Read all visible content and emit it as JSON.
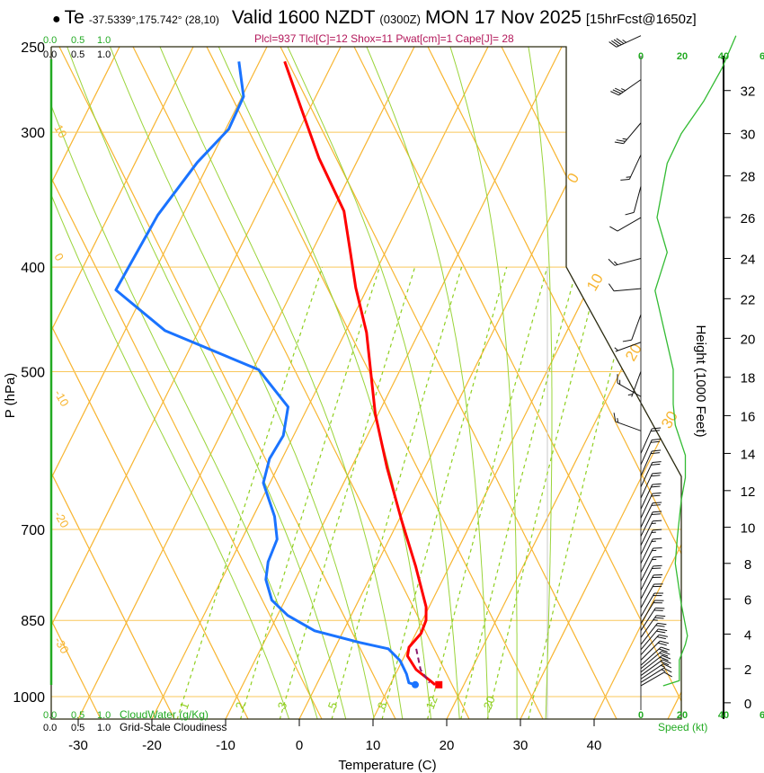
{
  "header": {
    "marker": "●",
    "station": "Te",
    "coords": "-37.5339°,175.742° (28,10)",
    "valid": "Valid 1600 NZDT",
    "utc": "(0300Z)",
    "date": "MON 17 Nov 2025",
    "forecast": "[15hrFcst@1650z]",
    "indices": "Plcl=937 Tlcl[C]=12 Shox=11 Pwat[cm]=1 Cape[J]= 28"
  },
  "chart_data": {
    "type": "line",
    "title": "Valid 1600 NZDT (0300Z) MON 17 Nov 2025",
    "xlabel": "Temperature (C)",
    "ylabel": "P (hPa)",
    "ylim": [
      1050,
      250
    ],
    "pressure_ticks": [
      250,
      300,
      400,
      500,
      700,
      850,
      1000
    ],
    "temp_ticks": [
      -30,
      -20,
      -10,
      0,
      10,
      20,
      30,
      40
    ],
    "isotherm_labels": [
      "0",
      "10",
      "20",
      "30"
    ],
    "adiabat_labels": [
      "10",
      "0",
      "-10",
      "-20",
      "-30"
    ],
    "mixing_ratio_labels": [
      "1",
      "2",
      "3",
      "5",
      "8",
      "12",
      "20"
    ],
    "mixing_ratio_values": [
      1,
      2,
      3,
      5,
      8,
      12,
      16,
      20,
      28
    ],
    "moist_adiabat_values": [
      -4,
      0,
      4,
      8,
      12,
      16,
      20,
      24,
      28,
      32
    ],
    "cloud_ticks": [
      "0.0",
      "0.5",
      "1.0"
    ],
    "cloudwater_label": "CloudWater (g/Kg)",
    "cloudiness_label": "Grid-Scale Cloudiness",
    "series": [
      {
        "name": "Temperature",
        "color": "#ff0000",
        "points": [
          [
            258,
            -46.6
          ],
          [
            285,
            -41.2
          ],
          [
            317,
            -35.4
          ],
          [
            355,
            -28.4
          ],
          [
            387,
            -24.8
          ],
          [
            418,
            -21.6
          ],
          [
            460,
            -17.1
          ],
          [
            547,
            -10.4
          ],
          [
            613,
            -5.2
          ],
          [
            688,
            0.5
          ],
          [
            757,
            5.4
          ],
          [
            826,
            9.6
          ],
          [
            850,
            10.5
          ],
          [
            874,
            10.7
          ],
          [
            900,
            10.0
          ],
          [
            917,
            10.4
          ],
          [
            944,
            12.5
          ],
          [
            966,
            15.1
          ],
          [
            975,
            16.1
          ]
        ]
      },
      {
        "name": "Dewpoint",
        "color": "#1a73ff",
        "points": [
          [
            258,
            -52.8
          ],
          [
            278,
            -49.8
          ],
          [
            298,
            -49.6
          ],
          [
            320,
            -51.6
          ],
          [
            358,
            -53.4
          ],
          [
            420,
            -54.0
          ],
          [
            458,
            -44.6
          ],
          [
            498,
            -29.2
          ],
          [
            539,
            -22.7
          ],
          [
            573,
            -21.4
          ],
          [
            602,
            -21.7
          ],
          [
            634,
            -20.9
          ],
          [
            681,
            -17.1
          ],
          [
            715,
            -15.2
          ],
          [
            750,
            -14.9
          ],
          [
            779,
            -14.0
          ],
          [
            814,
            -11.8
          ],
          [
            841,
            -8.6
          ],
          [
            869,
            -3.9
          ],
          [
            891,
            3.0
          ],
          [
            903,
            7.3
          ],
          [
            926,
            9.7
          ],
          [
            953,
            11.5
          ],
          [
            971,
            12.4
          ],
          [
            975,
            13.4
          ]
        ]
      },
      {
        "name": "Parcel",
        "color": "#8b1a6b",
        "points": [
          [
            903,
            11.1
          ],
          [
            944,
            13.1
          ],
          [
            971,
            15.2
          ]
        ]
      }
    ],
    "surface_markers": [
      {
        "name": "surface-temperature",
        "p": 975,
        "t": 16.6,
        "color": "#ff0000"
      },
      {
        "name": "surface-dewpoint",
        "p": 975,
        "t": 13.4,
        "color": "#1a73ff"
      }
    ],
    "wind": {
      "speed_ticks": [
        "0",
        "20",
        "40",
        "6"
      ],
      "speed_label": "Speed (kt)",
      "height_label": "Height (1000 Feet)",
      "height_ticks": [
        0,
        2,
        4,
        6,
        8,
        10,
        12,
        14,
        16,
        18,
        20,
        22,
        24,
        26,
        28,
        30,
        32
      ],
      "speed_profile": [
        [
          1.0,
          11
        ],
        [
          1.3,
          19
        ],
        [
          2.5,
          19
        ],
        [
          3.4,
          22
        ],
        [
          3.9,
          23
        ],
        [
          5.7,
          20
        ],
        [
          8.0,
          17
        ],
        [
          9.4,
          18
        ],
        [
          11.5,
          20
        ],
        [
          12.7,
          22
        ],
        [
          13.9,
          22
        ],
        [
          15.5,
          17
        ],
        [
          16.6,
          16
        ],
        [
          18.4,
          16
        ],
        [
          22.4,
          7
        ],
        [
          24.3,
          13
        ],
        [
          26.0,
          8
        ],
        [
          28.6,
          13
        ],
        [
          30.0,
          20
        ],
        [
          31.5,
          31
        ],
        [
          33.0,
          40
        ],
        [
          34.5,
          47
        ]
      ],
      "barbs": [
        [
          1.0,
          60,
          11
        ],
        [
          1.2,
          58,
          14
        ],
        [
          1.4,
          56,
          17
        ],
        [
          1.6,
          54,
          18
        ],
        [
          1.8,
          52,
          19
        ],
        [
          2.0,
          50,
          19
        ],
        [
          2.2,
          48,
          19
        ],
        [
          2.5,
          45,
          19
        ],
        [
          2.8,
          42,
          20
        ],
        [
          3.1,
          40,
          21
        ],
        [
          3.4,
          38,
          22
        ],
        [
          3.8,
          35,
          23
        ],
        [
          4.2,
          33,
          22
        ],
        [
          4.6,
          31,
          21
        ],
        [
          5.0,
          30,
          20
        ],
        [
          5.5,
          29,
          19
        ],
        [
          6.0,
          28,
          18
        ],
        [
          6.5,
          27,
          18
        ],
        [
          7.0,
          27,
          17
        ],
        [
          7.5,
          27,
          17
        ],
        [
          8.0,
          26,
          17
        ],
        [
          8.5,
          26,
          17
        ],
        [
          9.0,
          26,
          17
        ],
        [
          9.5,
          26,
          18
        ],
        [
          10.0,
          26,
          18
        ],
        [
          10.5,
          25,
          19
        ],
        [
          11.0,
          25,
          20
        ],
        [
          11.6,
          25,
          21
        ],
        [
          12.2,
          25,
          22
        ],
        [
          12.8,
          24,
          22
        ],
        [
          13.4,
          24,
          21
        ],
        [
          14.0,
          24,
          20
        ],
        [
          15.2,
          290,
          15
        ],
        [
          17.0,
          300,
          15
        ],
        [
          18.3,
          200,
          5
        ],
        [
          19.8,
          250,
          5
        ],
        [
          21.2,
          200,
          10
        ],
        [
          22.5,
          265,
          10
        ],
        [
          24.0,
          255,
          15
        ],
        [
          26.0,
          240,
          10
        ],
        [
          27.5,
          195,
          10
        ],
        [
          29.0,
          205,
          15
        ],
        [
          30.5,
          220,
          25
        ],
        [
          32.5,
          235,
          35
        ],
        [
          34.5,
          245,
          45
        ]
      ]
    }
  }
}
